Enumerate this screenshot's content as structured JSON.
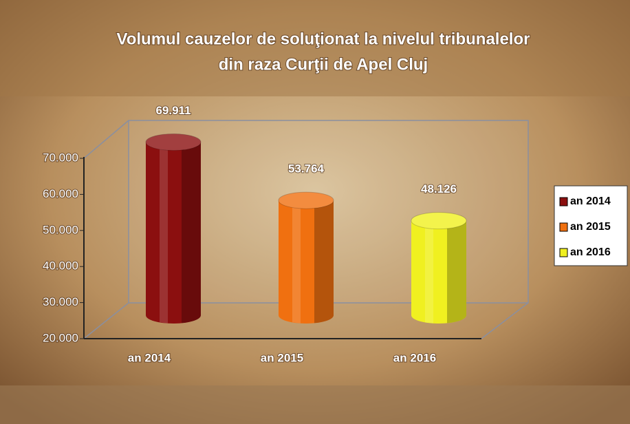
{
  "chart_data": {
    "type": "bar",
    "title": "Volumul cauzelor de soluţionat la nivelul tribunalelor",
    "subtitle": "din raza Curţii de Apel Cluj",
    "categories": [
      "an 2014",
      "an 2015",
      "an 2016"
    ],
    "values": [
      69911,
      53764,
      48126
    ],
    "value_labels": [
      "69.911",
      "53.764",
      "48.126"
    ],
    "colors": [
      "#8b0f0f",
      "#f07010",
      "#f0f020"
    ],
    "ylim": [
      20000,
      70000
    ],
    "yticks": [
      {
        "value": 20000,
        "label": "20.000"
      },
      {
        "value": 30000,
        "label": "30.000"
      },
      {
        "value": 40000,
        "label": "40.000"
      },
      {
        "value": 50000,
        "label": "50.000"
      },
      {
        "value": 60000,
        "label": "60.000"
      },
      {
        "value": 70000,
        "label": "70.000"
      }
    ],
    "legend": "right"
  }
}
